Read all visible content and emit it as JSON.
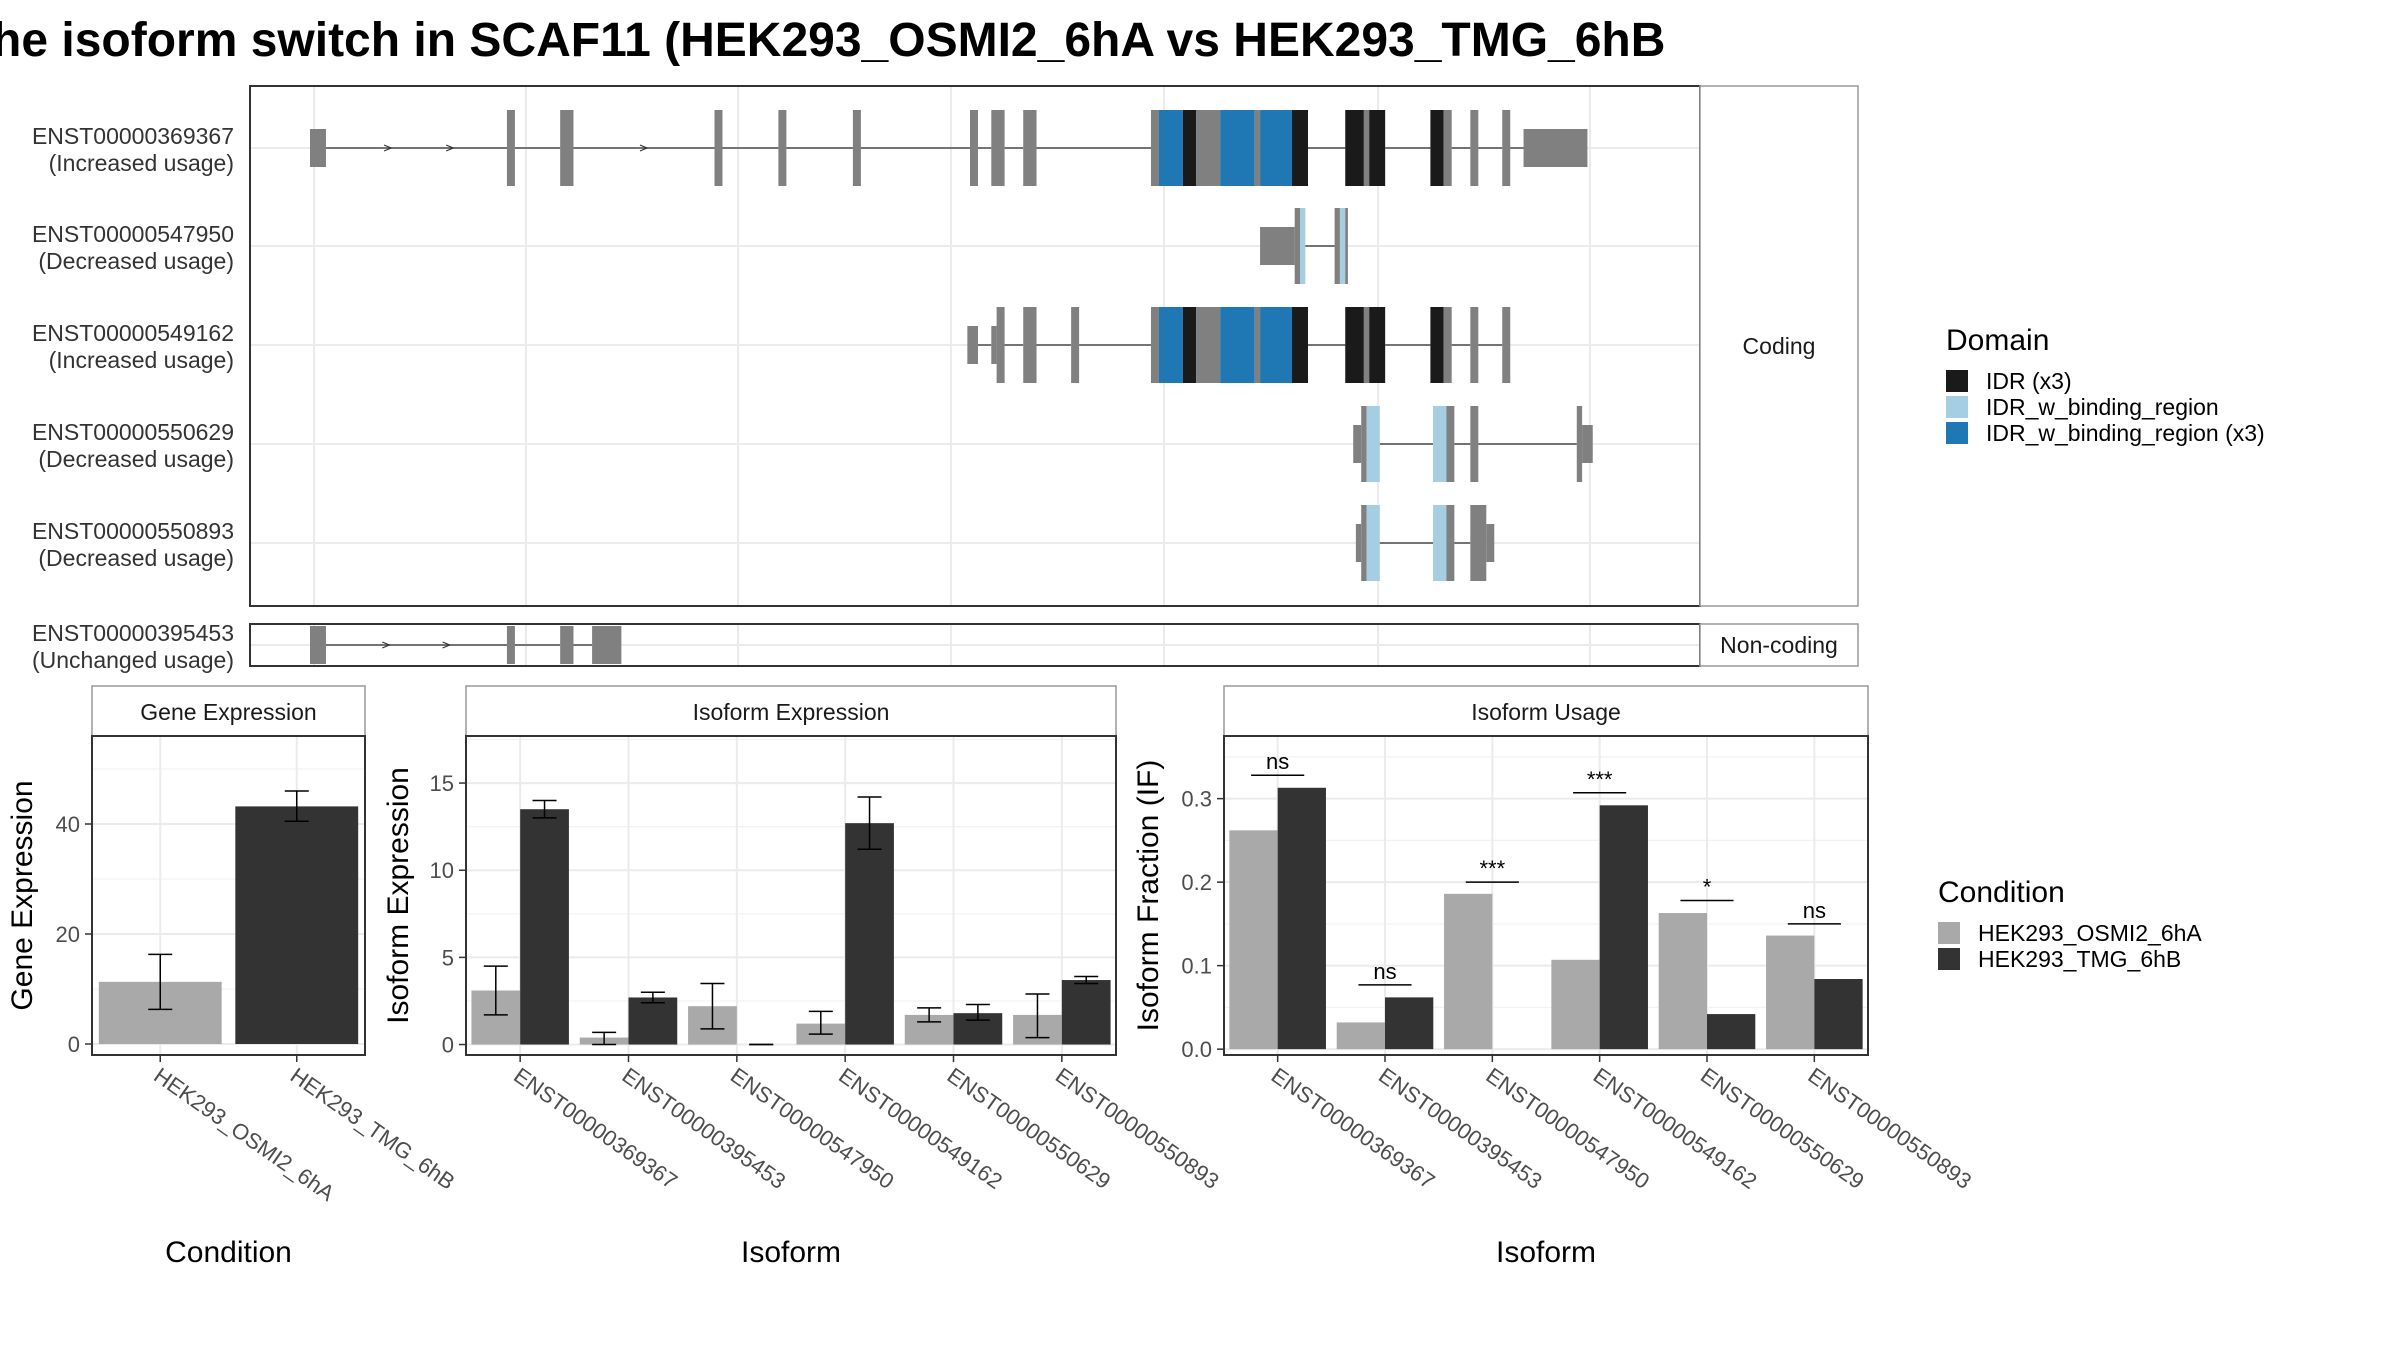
{
  "title": "he isoform switch in SCAF11 (HEK293_OSMI2_6hA vs HEK293_TMG_6hB",
  "colors": {
    "exon": "#808080",
    "idr": "#1a1a1a",
    "idr_binding": "#a6cee3",
    "idr_binding_x3": "#1f78b4",
    "cond_a": "#a9a9a9",
    "cond_b": "#333333"
  },
  "chart_data": [
    {
      "type": "gene-structure",
      "groups": [
        {
          "label": "Coding",
          "isoforms": [
            {
              "id": "ENST00000369367",
              "usage": "(Increased usage)",
              "segments": [
                {
                  "s": 0,
                  "e": 30,
                  "d": "utr"
                },
                {
                  "s": 30,
                  "e": 380,
                  "d": "intron"
                },
                {
                  "s": 370,
                  "e": 385,
                  "d": "exon"
                },
                {
                  "s": 385,
                  "e": 470,
                  "d": "intron"
                },
                {
                  "s": 470,
                  "e": 495,
                  "d": "exon"
                },
                {
                  "s": 495,
                  "e": 760,
                  "d": "intron"
                },
                {
                  "s": 760,
                  "e": 775,
                  "d": "exon"
                },
                {
                  "s": 775,
                  "e": 880,
                  "d": "intron"
                },
                {
                  "s": 880,
                  "e": 895,
                  "d": "exon"
                },
                {
                  "s": 895,
                  "e": 1020,
                  "d": "intron"
                },
                {
                  "s": 1020,
                  "e": 1035,
                  "d": "exon"
                },
                {
                  "s": 1035,
                  "e": 1240,
                  "d": "intron"
                },
                {
                  "s": 1240,
                  "e": 1255,
                  "d": "exon"
                },
                {
                  "s": 1255,
                  "e": 1280,
                  "d": "intron"
                },
                {
                  "s": 1280,
                  "e": 1305,
                  "d": "exon"
                },
                {
                  "s": 1305,
                  "e": 1340,
                  "d": "intron"
                },
                {
                  "s": 1340,
                  "e": 1365,
                  "d": "exon"
                },
                {
                  "s": 1365,
                  "e": 1580,
                  "d": "intron"
                },
                {
                  "s": 1580,
                  "e": 1595,
                  "d": "exon"
                },
                {
                  "s": 1595,
                  "e": 1640,
                  "d": "IDR_w_binding_region (x3)"
                },
                {
                  "s": 1640,
                  "e": 1665,
                  "d": "IDR (x3)"
                },
                {
                  "s": 1665,
                  "e": 1710,
                  "d": "exon"
                },
                {
                  "s": 1710,
                  "e": 1775,
                  "d": "IDR_w_binding_region (x3)"
                },
                {
                  "s": 1775,
                  "e": 1785,
                  "d": "exon"
                },
                {
                  "s": 1785,
                  "e": 1845,
                  "d": "IDR_w_binding_region (x3)"
                },
                {
                  "s": 1845,
                  "e": 1875,
                  "d": "IDR (x3)"
                },
                {
                  "s": 1875,
                  "e": 1945,
                  "d": "intron"
                },
                {
                  "s": 1945,
                  "e": 1980,
                  "d": "IDR (x3)"
                },
                {
                  "s": 1980,
                  "e": 1990,
                  "d": "exon"
                },
                {
                  "s": 1990,
                  "e": 2020,
                  "d": "IDR (x3)"
                },
                {
                  "s": 2020,
                  "e": 2105,
                  "d": "intron"
                },
                {
                  "s": 2105,
                  "e": 2130,
                  "d": "IDR (x3)"
                },
                {
                  "s": 2130,
                  "e": 2145,
                  "d": "exon"
                },
                {
                  "s": 2145,
                  "e": 2180,
                  "d": "intron"
                },
                {
                  "s": 2180,
                  "e": 2195,
                  "d": "exon"
                },
                {
                  "s": 2195,
                  "e": 2240,
                  "d": "intron"
                },
                {
                  "s": 2240,
                  "e": 2255,
                  "d": "exon"
                },
                {
                  "s": 2255,
                  "e": 2280,
                  "d": "intron"
                },
                {
                  "s": 2280,
                  "e": 2400,
                  "d": "utr"
                }
              ]
            },
            {
              "id": "ENST00000547950",
              "usage": "(Decreased usage)",
              "segments": [
                {
                  "s": 1785,
                  "e": 1850,
                  "d": "utr"
                },
                {
                  "s": 1850,
                  "e": 1860,
                  "d": "exon"
                },
                {
                  "s": 1860,
                  "e": 1870,
                  "d": "IDR_w_binding_region"
                },
                {
                  "s": 1870,
                  "e": 1925,
                  "d": "intron"
                },
                {
                  "s": 1925,
                  "e": 1935,
                  "d": "exon"
                },
                {
                  "s": 1935,
                  "e": 1945,
                  "d": "IDR_w_binding_region"
                },
                {
                  "s": 1945,
                  "e": 1950,
                  "d": "exon"
                }
              ]
            },
            {
              "id": "ENST00000549162",
              "usage": "(Increased usage)",
              "segments": [
                {
                  "s": 1235,
                  "e": 1255,
                  "d": "utr"
                },
                {
                  "s": 1255,
                  "e": 1280,
                  "d": "intron"
                },
                {
                  "s": 1280,
                  "e": 1290,
                  "d": "utr"
                },
                {
                  "s": 1290,
                  "e": 1305,
                  "d": "exon"
                },
                {
                  "s": 1305,
                  "e": 1340,
                  "d": "intron"
                },
                {
                  "s": 1340,
                  "e": 1365,
                  "d": "exon"
                },
                {
                  "s": 1365,
                  "e": 1430,
                  "d": "intron"
                },
                {
                  "s": 1430,
                  "e": 1445,
                  "d": "exon"
                },
                {
                  "s": 1445,
                  "e": 1580,
                  "d": "intron"
                },
                {
                  "s": 1580,
                  "e": 1595,
                  "d": "exon"
                },
                {
                  "s": 1595,
                  "e": 1640,
                  "d": "IDR_w_binding_region (x3)"
                },
                {
                  "s": 1640,
                  "e": 1665,
                  "d": "IDR (x3)"
                },
                {
                  "s": 1665,
                  "e": 1710,
                  "d": "exon"
                },
                {
                  "s": 1710,
                  "e": 1775,
                  "d": "IDR_w_binding_region (x3)"
                },
                {
                  "s": 1775,
                  "e": 1785,
                  "d": "exon"
                },
                {
                  "s": 1785,
                  "e": 1845,
                  "d": "IDR_w_binding_region (x3)"
                },
                {
                  "s": 1845,
                  "e": 1875,
                  "d": "IDR (x3)"
                },
                {
                  "s": 1875,
                  "e": 1945,
                  "d": "intron"
                },
                {
                  "s": 1945,
                  "e": 1980,
                  "d": "IDR (x3)"
                },
                {
                  "s": 1980,
                  "e": 1990,
                  "d": "exon"
                },
                {
                  "s": 1990,
                  "e": 2020,
                  "d": "IDR (x3)"
                },
                {
                  "s": 2020,
                  "e": 2105,
                  "d": "intron"
                },
                {
                  "s": 2105,
                  "e": 2130,
                  "d": "IDR (x3)"
                },
                {
                  "s": 2130,
                  "e": 2145,
                  "d": "exon"
                },
                {
                  "s": 2145,
                  "e": 2180,
                  "d": "intron"
                },
                {
                  "s": 2180,
                  "e": 2195,
                  "d": "exon"
                },
                {
                  "s": 2195,
                  "e": 2240,
                  "d": "intron"
                },
                {
                  "s": 2240,
                  "e": 2255,
                  "d": "exon"
                }
              ]
            },
            {
              "id": "ENST00000550629",
              "usage": "(Decreased usage)",
              "segments": [
                {
                  "s": 1960,
                  "e": 1975,
                  "d": "utr"
                },
                {
                  "s": 1975,
                  "e": 1985,
                  "d": "exon"
                },
                {
                  "s": 1985,
                  "e": 2010,
                  "d": "IDR_w_binding_region"
                },
                {
                  "s": 2010,
                  "e": 2110,
                  "d": "intron"
                },
                {
                  "s": 2110,
                  "e": 2135,
                  "d": "IDR_w_binding_region"
                },
                {
                  "s": 2135,
                  "e": 2150,
                  "d": "exon"
                },
                {
                  "s": 2150,
                  "e": 2180,
                  "d": "intron"
                },
                {
                  "s": 2180,
                  "e": 2195,
                  "d": "exon"
                },
                {
                  "s": 2195,
                  "e": 2380,
                  "d": "intron"
                },
                {
                  "s": 2380,
                  "e": 2390,
                  "d": "exon"
                },
                {
                  "s": 2390,
                  "e": 2410,
                  "d": "utr"
                }
              ]
            },
            {
              "id": "ENST00000550893",
              "usage": "(Decreased usage)",
              "segments": [
                {
                  "s": 1965,
                  "e": 1975,
                  "d": "utr"
                },
                {
                  "s": 1975,
                  "e": 1985,
                  "d": "exon"
                },
                {
                  "s": 1985,
                  "e": 2010,
                  "d": "IDR_w_binding_region"
                },
                {
                  "s": 2010,
                  "e": 2110,
                  "d": "intron"
                },
                {
                  "s": 2110,
                  "e": 2135,
                  "d": "IDR_w_binding_region"
                },
                {
                  "s": 2135,
                  "e": 2150,
                  "d": "exon"
                },
                {
                  "s": 2150,
                  "e": 2180,
                  "d": "intron"
                },
                {
                  "s": 2180,
                  "e": 2210,
                  "d": "exon"
                },
                {
                  "s": 2210,
                  "e": 2225,
                  "d": "utr"
                }
              ]
            }
          ]
        },
        {
          "label": "Non-coding",
          "isoforms": [
            {
              "id": "ENST00000395453",
              "usage": "(Unchanged usage)",
              "segments": [
                {
                  "s": 0,
                  "e": 30,
                  "d": "exon"
                },
                {
                  "s": 30,
                  "e": 370,
                  "d": "intron"
                },
                {
                  "s": 370,
                  "e": 385,
                  "d": "exon"
                },
                {
                  "s": 385,
                  "e": 470,
                  "d": "intron"
                },
                {
                  "s": 470,
                  "e": 495,
                  "d": "exon"
                },
                {
                  "s": 495,
                  "e": 530,
                  "d": "intron"
                },
                {
                  "s": 530,
                  "e": 585,
                  "d": "exon"
                }
              ]
            }
          ]
        }
      ]
    },
    {
      "type": "bar",
      "title": "Gene Expression",
      "xlabel": "Condition",
      "ylabel": "Gene Expression",
      "categories": [
        "HEK293_OSMI2_6hA",
        "HEK293_TMG_6hB"
      ],
      "values": [
        11.3,
        43.2
      ],
      "errors": [
        [
          6.3,
          16.3
        ],
        [
          40.5,
          46.0
        ]
      ],
      "ylim": [
        -2,
        56
      ],
      "yticks": [
        0,
        20,
        40
      ]
    },
    {
      "type": "bar",
      "title": "Isoform Expression",
      "xlabel": "Isoform",
      "ylabel": "Isoform Expression",
      "categories": [
        "ENST00000369367",
        "ENST00000395453",
        "ENST00000547950",
        "ENST00000549162",
        "ENST00000550629",
        "ENST00000550893"
      ],
      "series": [
        {
          "name": "HEK293_OSMI2_6hA",
          "values": [
            3.1,
            0.4,
            2.2,
            1.2,
            1.7,
            1.7
          ],
          "errors": [
            [
              1.7,
              4.5
            ],
            [
              0.0,
              0.7
            ],
            [
              0.9,
              3.5
            ],
            [
              0.6,
              1.9
            ],
            [
              1.3,
              2.1
            ],
            [
              0.4,
              2.9
            ]
          ]
        },
        {
          "name": "HEK293_TMG_6hB",
          "values": [
            13.5,
            2.7,
            0.0,
            12.7,
            1.8,
            3.7
          ],
          "errors": [
            [
              13.0,
              14.0
            ],
            [
              2.4,
              3.0
            ],
            [
              0.0,
              0.0
            ],
            [
              11.2,
              14.2
            ],
            [
              1.4,
              2.3
            ],
            [
              3.5,
              3.9
            ]
          ]
        }
      ],
      "ylim": [
        -0.6,
        17.7
      ],
      "yticks": [
        0,
        5,
        10,
        15
      ]
    },
    {
      "type": "bar",
      "title": "Isoform Usage",
      "xlabel": "Isoform",
      "ylabel": "Isoform Fraction (IF)",
      "categories": [
        "ENST00000369367",
        "ENST00000395453",
        "ENST00000547950",
        "ENST00000549162",
        "ENST00000550629",
        "ENST00000550893"
      ],
      "series": [
        {
          "name": "HEK293_OSMI2_6hA",
          "values": [
            0.262,
            0.032,
            0.186,
            0.107,
            0.163,
            0.136
          ]
        },
        {
          "name": "HEK293_TMG_6hB",
          "values": [
            0.313,
            0.062,
            0.0,
            0.292,
            0.042,
            0.084
          ]
        }
      ],
      "significance": [
        "ns",
        "ns",
        "***",
        "***",
        "*",
        "ns"
      ],
      "sig_levels": [
        0.328,
        0.077,
        0.2,
        0.307,
        0.178,
        0.15
      ],
      "ylim": [
        -0.007,
        0.375
      ],
      "yticks": [
        0.0,
        0.1,
        0.2,
        0.3
      ],
      "ytick_labels": [
        "0.0",
        "0.1",
        "0.2",
        "0.3"
      ]
    }
  ],
  "legend_domain": {
    "title": "Domain",
    "items": [
      {
        "label": "IDR (x3)",
        "color": "#1a1a1a"
      },
      {
        "label": "IDR_w_binding_region",
        "color": "#a6cee3"
      },
      {
        "label": "IDR_w_binding_region (x3)",
        "color": "#1f78b4"
      }
    ]
  },
  "legend_condition": {
    "title": "Condition",
    "items": [
      {
        "label": "HEK293_OSMI2_6hA",
        "color": "#a9a9a9"
      },
      {
        "label": "HEK293_TMG_6hB",
        "color": "#333333"
      }
    ]
  }
}
